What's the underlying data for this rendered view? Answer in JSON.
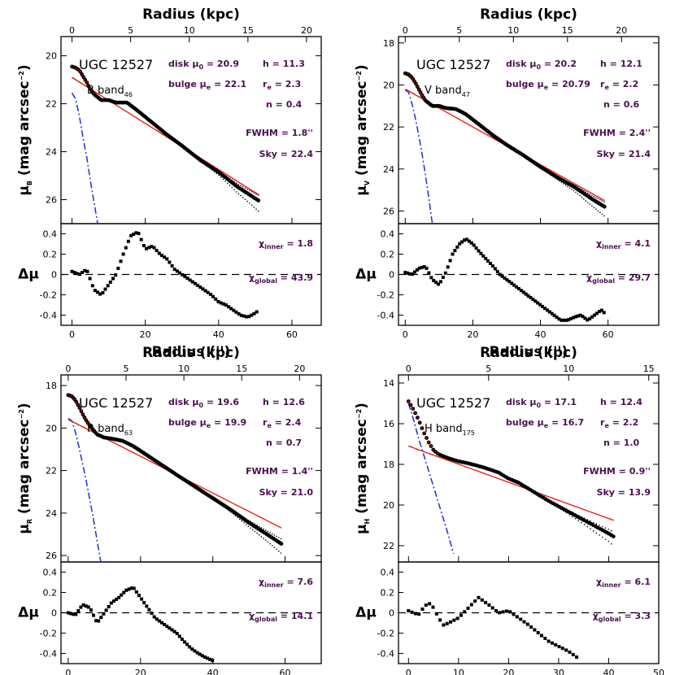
{
  "colors": {
    "data": "#000000",
    "disk_model": "#e8231a",
    "bulge_model": "#2030d0",
    "disk_component": "#22bb22",
    "params": "#4a1050",
    "inner_dots": "#c00000"
  },
  "chart_data": [
    {
      "type": "scatter",
      "galaxy": "UGC 12527",
      "band": "B band",
      "band_sub": "46",
      "ylabel_sub": "B",
      "params": {
        "disk_mu0": "20.9",
        "h": "11.3",
        "bulge_mue": "22.1",
        "re": "2.3",
        "n": "0.4",
        "fwhm": "1.8",
        "sky": "22.4",
        "chi_inner": "1.8",
        "chi_global": "43.9"
      },
      "xlim": [
        -3,
        68
      ],
      "xticks": [
        0,
        20,
        40,
        60
      ],
      "kpc_per_arcsec": 0.3125,
      "kpc_ticks": [
        0,
        5,
        10,
        15,
        20
      ],
      "ylim": [
        27,
        19.2
      ],
      "yticks": [
        20,
        22,
        24,
        26
      ],
      "rlim": [
        -0.5,
        0.5
      ],
      "rticks": [
        0.4,
        0.2,
        0,
        -0.2,
        -0.4
      ],
      "profile": {
        "x": [
          0,
          1,
          2,
          3,
          4,
          5,
          6,
          8,
          10,
          12,
          15,
          18,
          22,
          26,
          30,
          35,
          40,
          45,
          50,
          51
        ],
        "y": [
          20.45,
          20.5,
          20.6,
          20.85,
          21.1,
          21.4,
          21.6,
          21.85,
          21.85,
          21.95,
          21.95,
          22.3,
          22.8,
          23.3,
          23.75,
          24.35,
          24.85,
          25.45,
          25.95,
          26.05
        ]
      },
      "disk": {
        "x": [
          0,
          51
        ],
        "y": [
          20.9,
          25.8
        ]
      },
      "bulge": {
        "x": [
          0,
          1,
          2,
          3,
          4,
          5,
          6,
          7
        ],
        "y": [
          21.55,
          21.8,
          22.5,
          23.4,
          24.2,
          25.2,
          26.1,
          27
        ]
      },
      "residual": {
        "x": [
          0,
          2,
          4,
          6,
          8,
          10,
          12,
          14,
          16,
          18,
          20,
          22,
          24,
          26,
          28,
          30,
          32,
          34,
          36,
          38,
          40,
          42,
          44,
          46,
          48,
          50,
          51
        ],
        "y": [
          0.03,
          0.0,
          0.05,
          -0.15,
          -0.2,
          -0.1,
          0.0,
          0.2,
          0.38,
          0.42,
          0.25,
          0.28,
          0.2,
          0.15,
          0.05,
          0.0,
          -0.05,
          -0.1,
          -0.15,
          -0.2,
          -0.27,
          -0.3,
          -0.35,
          -0.4,
          -0.42,
          -0.38,
          -0.35
        ]
      }
    },
    {
      "type": "scatter",
      "galaxy": "UGC 12527",
      "band": "V band",
      "band_sub": "47",
      "ylabel_sub": "V",
      "params": {
        "disk_mu0": "20.2",
        "h": "12.1",
        "bulge_mue": "20.79",
        "re": "2.2",
        "n": "0.6",
        "fwhm": "2.4",
        "sky": "21.4",
        "chi_inner": "4.1",
        "chi_global": "29.7"
      },
      "xlim": [
        -2,
        75
      ],
      "xticks": [
        0,
        20,
        40,
        60
      ],
      "kpc_per_arcsec": 0.3125,
      "kpc_ticks": [
        0,
        5,
        10,
        15,
        20
      ],
      "ylim": [
        26.6,
        17.7
      ],
      "yticks": [
        18,
        20,
        22,
        24,
        26
      ],
      "rlim": [
        -0.5,
        0.5
      ],
      "rticks": [
        0.4,
        0.2,
        0,
        -0.2,
        -0.4
      ],
      "profile": {
        "x": [
          0,
          1,
          2,
          3,
          4,
          5,
          6,
          8,
          10,
          12,
          15,
          18,
          22,
          26,
          30,
          35,
          40,
          45,
          50,
          55,
          59
        ],
        "y": [
          19.45,
          19.5,
          19.65,
          19.9,
          20.2,
          20.5,
          20.75,
          21.0,
          21.0,
          21.1,
          21.15,
          21.4,
          21.9,
          22.4,
          22.85,
          23.35,
          23.9,
          24.4,
          24.85,
          25.4,
          25.8
        ]
      },
      "disk": {
        "x": [
          0,
          59
        ],
        "y": [
          20.2,
          25.5
        ]
      },
      "bulge": {
        "x": [
          0,
          1,
          2,
          3,
          4,
          5,
          6,
          7,
          8
        ],
        "y": [
          20.25,
          20.35,
          20.9,
          21.6,
          22.4,
          23.3,
          24.3,
          25.4,
          26.6
        ]
      },
      "residual": {
        "x": [
          0,
          2,
          4,
          6,
          8,
          10,
          12,
          14,
          16,
          18,
          20,
          22,
          24,
          26,
          28,
          30,
          32,
          34,
          36,
          38,
          40,
          42,
          44,
          46,
          48,
          50,
          52,
          54,
          56,
          58,
          59
        ],
        "y": [
          0.02,
          0.0,
          0.06,
          0.08,
          -0.05,
          -0.1,
          0.02,
          0.2,
          0.3,
          0.35,
          0.3,
          0.22,
          0.15,
          0.08,
          0.0,
          -0.05,
          -0.1,
          -0.15,
          -0.2,
          -0.25,
          -0.3,
          -0.35,
          -0.4,
          -0.45,
          -0.45,
          -0.42,
          -0.4,
          -0.45,
          -0.4,
          -0.35,
          -0.38
        ]
      }
    },
    {
      "type": "scatter",
      "galaxy": "UGC 12527",
      "band": "R band",
      "band_sub": "63",
      "ylabel_sub": "R",
      "params": {
        "disk_mu0": "19.6",
        "h": "12.6",
        "bulge_mue": "19.9",
        "re": "2.4",
        "n": "0.7",
        "fwhm": "1.4",
        "sky": "21.0",
        "chi_inner": "7.6",
        "chi_global": "14.1"
      },
      "xlim": [
        -2,
        70
      ],
      "xticks": [
        0,
        20,
        40,
        60
      ],
      "kpc_per_arcsec": 0.3125,
      "kpc_ticks": [
        0,
        5,
        10,
        15,
        20
      ],
      "ylim": [
        26.3,
        17.5
      ],
      "yticks": [
        18,
        20,
        22,
        24,
        26
      ],
      "rlim": [
        -0.5,
        0.5
      ],
      "rticks": [
        0.4,
        0.2,
        0,
        -0.2,
        -0.4
      ],
      "profile": {
        "x": [
          0,
          1,
          2,
          3,
          4,
          5,
          6,
          8,
          10,
          12,
          15,
          18,
          22,
          26,
          30,
          35,
          40,
          45,
          50,
          55,
          59
        ],
        "y": [
          18.45,
          18.5,
          18.7,
          19.0,
          19.35,
          19.65,
          19.9,
          20.3,
          20.45,
          20.5,
          20.6,
          20.85,
          21.3,
          21.75,
          22.2,
          22.75,
          23.3,
          23.85,
          24.45,
          25.0,
          25.45
        ]
      },
      "disk": {
        "x": [
          0,
          59
        ],
        "y": [
          19.6,
          24.7
        ]
      },
      "bulge": {
        "x": [
          0,
          1,
          2,
          3,
          4,
          5,
          6,
          7,
          8,
          9
        ],
        "y": [
          19.55,
          19.65,
          20.2,
          20.9,
          21.7,
          22.5,
          23.4,
          24.3,
          25.3,
          26.3
        ]
      },
      "residual": {
        "x": [
          0,
          2,
          4,
          6,
          8,
          10,
          12,
          14,
          16,
          18,
          20,
          22,
          24,
          26,
          28,
          30,
          32,
          34,
          36,
          38,
          40
        ],
        "y": [
          0.0,
          -0.02,
          0.08,
          0.05,
          -0.1,
          0.0,
          0.1,
          0.15,
          0.22,
          0.25,
          0.15,
          0.05,
          -0.05,
          -0.1,
          -0.15,
          -0.2,
          -0.28,
          -0.35,
          -0.4,
          -0.44,
          -0.47
        ]
      }
    },
    {
      "type": "scatter",
      "galaxy": "UGC 12527",
      "band": "H band",
      "band_sub": "175",
      "ylabel_sub": "H",
      "params": {
        "disk_mu0": "17.1",
        "h": "12.4",
        "bulge_mue": "16.7",
        "re": "2.2",
        "n": "1.0",
        "fwhm": "0.9",
        "sky": "13.9",
        "chi_inner": "6.1",
        "chi_global": "3.3"
      },
      "xlim": [
        -2,
        50
      ],
      "xticks": [
        0,
        10,
        20,
        30,
        40,
        50
      ],
      "kpc_per_arcsec": 0.3125,
      "kpc_ticks": [
        0,
        5,
        10,
        15
      ],
      "ylim": [
        22.8,
        13.6
      ],
      "yticks": [
        14,
        16,
        18,
        20,
        22
      ],
      "rlim": [
        -0.5,
        0.5
      ],
      "rticks": [
        0.4,
        0.2,
        0,
        -0.2,
        -0.4
      ],
      "profile": {
        "x": [
          0,
          1,
          2,
          3,
          4,
          5,
          6,
          8,
          10,
          12,
          15,
          18,
          20,
          22,
          25,
          28,
          31,
          34,
          37,
          40,
          41
        ],
        "y": [
          14.9,
          15.3,
          15.8,
          16.4,
          16.9,
          17.3,
          17.5,
          17.7,
          17.85,
          17.95,
          18.15,
          18.4,
          18.7,
          18.9,
          19.35,
          19.8,
          20.2,
          20.6,
          21.0,
          21.4,
          21.55
        ]
      },
      "disk": {
        "x": [
          0,
          41
        ],
        "y": [
          17.1,
          20.75
        ]
      },
      "bulge": {
        "x": [
          0,
          1,
          2,
          3,
          4,
          5,
          6,
          7,
          8,
          9
        ],
        "y": [
          15.0,
          15.8,
          16.7,
          17.5,
          18.3,
          19.1,
          19.9,
          20.7,
          21.5,
          22.4
        ]
      },
      "residual": {
        "x": [
          0,
          1,
          2,
          3,
          4,
          5,
          6,
          7,
          8,
          10,
          12,
          14,
          16,
          18,
          20,
          22,
          24,
          26,
          28,
          30,
          32,
          34
        ],
        "y": [
          0.02,
          0.0,
          -0.02,
          0.05,
          0.1,
          0.05,
          -0.05,
          -0.12,
          -0.1,
          -0.05,
          0.05,
          0.15,
          0.08,
          0.0,
          0.02,
          -0.05,
          -0.12,
          -0.2,
          -0.28,
          -0.33,
          -0.38,
          -0.45
        ]
      }
    }
  ]
}
